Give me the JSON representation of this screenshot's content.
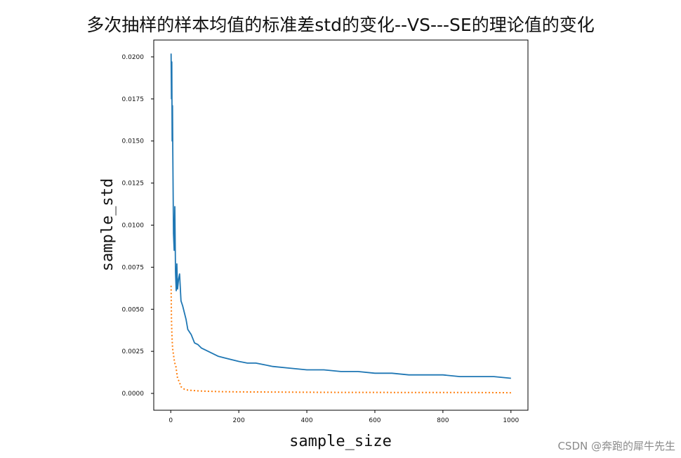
{
  "chart_data": {
    "type": "line",
    "title": "多次抽样的样本均值的标准差std的变化--VS---SE的理论值的变化",
    "xlabel": "sample_size",
    "ylabel": "sample_std",
    "xlim": [
      -50,
      1050
    ],
    "ylim": [
      -0.001,
      0.021
    ],
    "xticks": [
      0,
      200,
      400,
      600,
      800,
      1000
    ],
    "yticks": [
      0.0,
      0.0025,
      0.005,
      0.0075,
      0.01,
      0.0125,
      0.015,
      0.0175,
      0.02
    ],
    "xtick_labels": [
      "0",
      "200",
      "400",
      "600",
      "800",
      "1000"
    ],
    "ytick_labels": [
      "0.0000",
      "0.0025",
      "0.0050",
      "0.0075",
      "0.0100",
      "0.0125",
      "0.0150",
      "0.0175",
      "0.0200"
    ],
    "grid": false,
    "series": [
      {
        "color": "#1f77b4",
        "style": "solid",
        "x": [
          1,
          2,
          3,
          4,
          5,
          6,
          7,
          8,
          10,
          12,
          14,
          16,
          18,
          20,
          23,
          26,
          30,
          35,
          40,
          45,
          50,
          60,
          70,
          80,
          90,
          100,
          120,
          140,
          160,
          180,
          200,
          225,
          250,
          275,
          300,
          350,
          400,
          450,
          500,
          550,
          600,
          650,
          700,
          750,
          800,
          850,
          900,
          950,
          1000
        ],
        "y": [
          0.0202,
          0.0175,
          0.0197,
          0.015,
          0.0171,
          0.0145,
          0.012,
          0.0095,
          0.0085,
          0.0111,
          0.0072,
          0.0061,
          0.0077,
          0.0062,
          0.0068,
          0.0071,
          0.0055,
          0.0052,
          0.0048,
          0.0044,
          0.0038,
          0.0035,
          0.003,
          0.0029,
          0.0027,
          0.0026,
          0.0024,
          0.0022,
          0.0021,
          0.002,
          0.0019,
          0.0018,
          0.0018,
          0.0017,
          0.0016,
          0.0015,
          0.0014,
          0.0014,
          0.0013,
          0.0013,
          0.0012,
          0.0012,
          0.0011,
          0.0011,
          0.0011,
          0.001,
          0.001,
          0.001,
          0.0009
        ]
      },
      {
        "color": "#ff7f0e",
        "style": "dotted",
        "x": [
          1,
          2,
          3,
          4,
          5,
          6,
          8,
          10,
          12,
          15,
          20,
          25,
          30,
          40,
          50,
          60,
          80,
          100,
          150,
          200,
          300,
          400,
          500,
          600,
          700,
          800,
          900,
          1000
        ],
        "y": [
          0.0064,
          0.0045,
          0.0037,
          0.0032,
          0.0028,
          0.0026,
          0.0023,
          0.002,
          0.0018,
          0.0016,
          0.0009,
          0.0007,
          0.0004,
          0.00025,
          0.0002,
          0.00018,
          0.00015,
          0.00013,
          0.0001,
          9e-05,
          8e-05,
          7e-05,
          6e-05,
          6e-05,
          5e-05,
          5e-05,
          5e-05,
          4e-05
        ]
      }
    ]
  },
  "watermark": "CSDN @奔跑的犀牛先生"
}
